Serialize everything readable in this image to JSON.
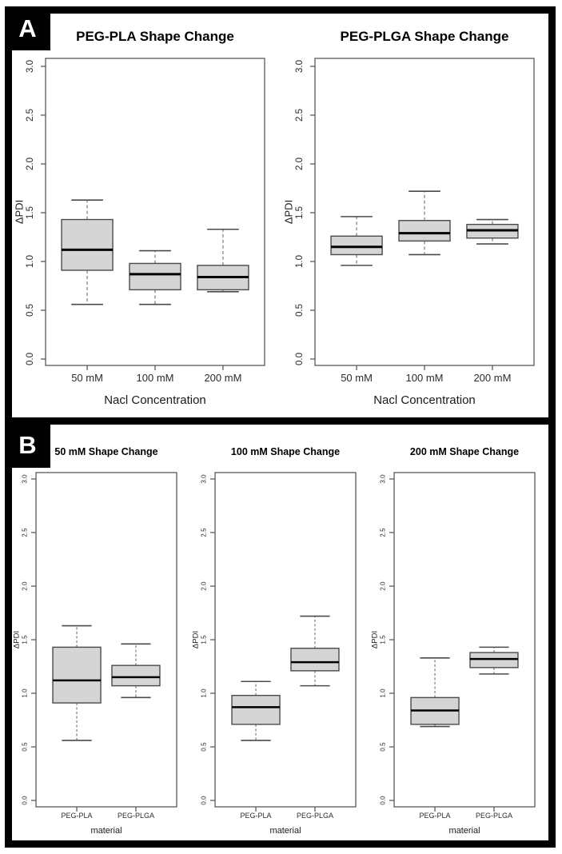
{
  "figure": {
    "panel_a": {
      "label": "A"
    },
    "panel_b": {
      "label": "B"
    }
  },
  "colors": {
    "box_fill": "#d5d5d5",
    "box_stroke": "#4a4a4a",
    "median": "#000000",
    "whisker": "#7b7b7b",
    "frame": "#5a5a5a",
    "panel_border": "#000000",
    "badge_bg": "#000000",
    "badge_text": "#ffffff",
    "tick_text": "#2b2b2b"
  },
  "chart_data": [
    {
      "type": "boxplot",
      "panel": "A",
      "title": "PEG-PLA Shape Change",
      "xlabel": "Nacl Concentration",
      "ylabel": "ΔPDI",
      "categories": [
        "50 mM",
        "100 mM",
        "200 mM"
      ],
      "yticks": [
        0.0,
        0.5,
        1.0,
        1.5,
        2.0,
        2.5,
        3.0
      ],
      "ylim": [
        0,
        3.1
      ],
      "grid": false,
      "boxes": [
        {
          "min": 0.56,
          "q1": 0.91,
          "median": 1.12,
          "q3": 1.43,
          "max": 1.63
        },
        {
          "min": 0.56,
          "q1": 0.71,
          "median": 0.87,
          "q3": 0.98,
          "max": 1.11
        },
        {
          "min": 0.69,
          "q1": 0.71,
          "median": 0.84,
          "q3": 0.96,
          "max": 1.33
        }
      ]
    },
    {
      "type": "boxplot",
      "panel": "A",
      "title": "PEG-PLGA Shape Change",
      "xlabel": "Nacl Concentration",
      "ylabel": "ΔPDI",
      "categories": [
        "50 mM",
        "100 mM",
        "200 mM"
      ],
      "yticks": [
        0.0,
        0.5,
        1.0,
        1.5,
        2.0,
        2.5,
        3.0
      ],
      "ylim": [
        0,
        3.1
      ],
      "grid": false,
      "boxes": [
        {
          "min": 0.96,
          "q1": 1.07,
          "median": 1.15,
          "q3": 1.26,
          "max": 1.46
        },
        {
          "min": 1.07,
          "q1": 1.21,
          "median": 1.29,
          "q3": 1.42,
          "max": 1.72
        },
        {
          "min": 1.18,
          "q1": 1.24,
          "median": 1.32,
          "q3": 1.38,
          "max": 1.43
        }
      ]
    },
    {
      "type": "boxplot",
      "panel": "B",
      "title": "50 mM Shape Change",
      "xlabel": "material",
      "ylabel": "ΔPDI",
      "categories": [
        "PEG-PLA",
        "PEG-PLGA"
      ],
      "yticks": [
        0.0,
        0.5,
        1.0,
        1.5,
        2.0,
        2.5,
        3.0
      ],
      "ylim": [
        0,
        3.1
      ],
      "grid": false,
      "boxes": [
        {
          "min": 0.56,
          "q1": 0.91,
          "median": 1.12,
          "q3": 1.43,
          "max": 1.63
        },
        {
          "min": 0.96,
          "q1": 1.07,
          "median": 1.15,
          "q3": 1.26,
          "max": 1.46
        }
      ]
    },
    {
      "type": "boxplot",
      "panel": "B",
      "title": "100 mM Shape Change",
      "xlabel": "material",
      "ylabel": "ΔPDI",
      "categories": [
        "PEG-PLA",
        "PEG-PLGA"
      ],
      "yticks": [
        0.0,
        0.5,
        1.0,
        1.5,
        2.0,
        2.5,
        3.0
      ],
      "ylim": [
        0,
        3.1
      ],
      "grid": false,
      "boxes": [
        {
          "min": 0.56,
          "q1": 0.71,
          "median": 0.87,
          "q3": 0.98,
          "max": 1.11
        },
        {
          "min": 1.07,
          "q1": 1.21,
          "median": 1.29,
          "q3": 1.42,
          "max": 1.72
        }
      ]
    },
    {
      "type": "boxplot",
      "panel": "B",
      "title": "200 mM Shape Change",
      "xlabel": "material",
      "ylabel": "ΔPDI",
      "categories": [
        "PEG-PLA",
        "PEG-PLGA"
      ],
      "yticks": [
        0.0,
        0.5,
        1.0,
        1.5,
        2.0,
        2.5,
        3.0
      ],
      "ylim": [
        0,
        3.1
      ],
      "grid": false,
      "boxes": [
        {
          "min": 0.69,
          "q1": 0.71,
          "median": 0.84,
          "q3": 0.96,
          "max": 1.33
        },
        {
          "min": 1.18,
          "q1": 1.24,
          "median": 1.32,
          "q3": 1.38,
          "max": 1.43
        }
      ]
    }
  ]
}
